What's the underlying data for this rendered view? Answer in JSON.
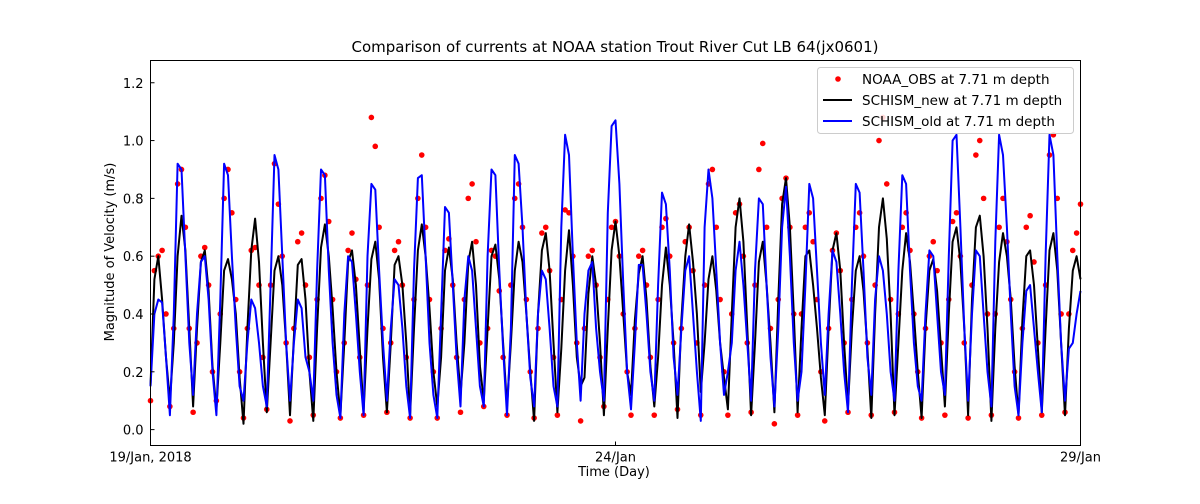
{
  "chart_data": {
    "type": "line",
    "title": "Comparison of currents at NOAA station Trout River Cut LB 64(jx0601)",
    "xlabel": "Time (Day)",
    "ylabel": "Magnitude of Velocity (m/s)",
    "x_units": "hours since 19/Jan 2018 00:00",
    "x_start": 0,
    "x_step": 1,
    "xlim": [
      0,
      240
    ],
    "ylim": [
      -0.055,
      1.277
    ],
    "xticks": [
      {
        "value": 0,
        "label": "19/Jan, 2018"
      },
      {
        "value": 120,
        "label": "24/Jan"
      },
      {
        "value": 240,
        "label": "29/Jan"
      }
    ],
    "yticks": [
      {
        "value": 0.0,
        "label": "0.0"
      },
      {
        "value": 0.2,
        "label": "0.2"
      },
      {
        "value": 0.4,
        "label": "0.4"
      },
      {
        "value": 0.6,
        "label": "0.6"
      },
      {
        "value": 0.8,
        "label": "0.8"
      },
      {
        "value": 1.0,
        "label": "1.0"
      },
      {
        "value": 1.2,
        "label": "1.2"
      }
    ],
    "grid": false,
    "legend_position": "top-right",
    "series": [
      {
        "name": "NOAA_OBS at 7.71 m depth",
        "style": "scatter",
        "color": "#ff0000",
        "values": [
          0.1,
          0.55,
          0.6,
          0.62,
          0.4,
          0.08,
          0.35,
          0.85,
          0.9,
          0.7,
          0.35,
          0.06,
          0.3,
          0.6,
          0.63,
          0.5,
          0.2,
          0.1,
          0.4,
          0.8,
          0.9,
          0.75,
          0.45,
          0.2,
          0.04,
          0.35,
          0.62,
          0.63,
          0.5,
          0.25,
          0.07,
          0.5,
          0.92,
          0.78,
          0.6,
          0.3,
          0.03,
          0.35,
          0.65,
          0.68,
          0.5,
          0.25,
          0.05,
          0.45,
          0.8,
          0.88,
          0.72,
          0.45,
          0.2,
          0.04,
          0.3,
          0.62,
          0.68,
          0.52,
          0.25,
          0.05,
          0.5,
          1.08,
          0.98,
          0.7,
          0.35,
          0.06,
          0.3,
          0.62,
          0.65,
          0.5,
          0.25,
          0.04,
          0.45,
          0.8,
          0.95,
          0.7,
          0.45,
          0.2,
          0.04,
          0.35,
          0.62,
          0.66,
          0.5,
          0.25,
          0.06,
          0.45,
          0.8,
          0.85,
          0.65,
          0.3,
          0.08,
          0.35,
          0.62,
          0.6,
          0.48,
          0.25,
          0.05,
          0.5,
          0.8,
          0.85,
          0.7,
          0.45,
          0.2,
          0.04,
          0.35,
          0.68,
          0.7,
          0.55,
          0.25,
          0.05,
          0.45,
          0.76,
          0.75,
          0.6,
          0.3,
          0.03,
          0.35,
          0.6,
          0.62,
          0.5,
          0.25,
          0.08,
          0.45,
          0.7,
          0.72,
          0.6,
          0.4,
          0.2,
          0.05,
          0.35,
          0.6,
          0.62,
          0.5,
          0.25,
          0.05,
          0.45,
          0.7,
          0.73,
          0.6,
          0.3,
          0.07,
          0.35,
          0.65,
          0.7,
          0.55,
          0.3,
          0.05,
          0.5,
          0.85,
          0.9,
          0.7,
          0.45,
          0.2,
          0.05,
          0.4,
          0.75,
          0.78,
          0.6,
          0.3,
          0.06,
          0.5,
          0.9,
          0.99,
          0.7,
          0.35,
          0.02,
          0.45,
          0.8,
          0.87,
          0.7,
          0.4,
          0.05,
          0.4,
          0.7,
          0.75,
          0.65,
          0.45,
          0.2,
          0.03,
          0.35,
          0.62,
          0.68,
          0.55,
          0.3,
          0.06,
          0.45,
          0.7,
          0.75,
          0.6,
          0.3,
          0.05,
          0.5,
          1.0,
          1.08,
          0.85,
          0.45,
          0.06,
          0.4,
          0.7,
          0.75,
          0.62,
          0.4,
          0.2,
          0.04,
          0.35,
          0.6,
          0.65,
          0.55,
          0.3,
          0.05,
          0.45,
          0.72,
          0.75,
          0.6,
          0.3,
          0.04,
          0.5,
          0.95,
          1.0,
          0.8,
          0.4,
          0.05,
          0.4,
          0.7,
          0.8,
          0.65,
          0.45,
          0.2,
          0.04,
          0.35,
          0.7,
          0.74,
          0.58,
          0.3,
          0.05,
          0.5,
          0.95,
          1.02,
          0.8,
          0.4,
          0.06,
          0.4,
          0.62,
          0.68,
          0.78
        ]
      },
      {
        "name": "SCHISM_new at 7.71 m depth",
        "style": "line",
        "color": "#000000",
        "values": [
          0.15,
          0.52,
          0.6,
          0.45,
          0.25,
          0.1,
          0.3,
          0.6,
          0.74,
          0.62,
          0.35,
          0.08,
          0.35,
          0.58,
          0.62,
          0.48,
          0.22,
          0.07,
          0.3,
          0.55,
          0.59,
          0.52,
          0.4,
          0.18,
          0.02,
          0.35,
          0.62,
          0.73,
          0.58,
          0.3,
          0.06,
          0.3,
          0.55,
          0.6,
          0.5,
          0.3,
          0.05,
          0.32,
          0.57,
          0.59,
          0.45,
          0.2,
          0.03,
          0.35,
          0.63,
          0.71,
          0.6,
          0.42,
          0.2,
          0.05,
          0.3,
          0.58,
          0.62,
          0.5,
          0.28,
          0.06,
          0.35,
          0.59,
          0.65,
          0.52,
          0.25,
          0.06,
          0.3,
          0.57,
          0.6,
          0.5,
          0.3,
          0.05,
          0.35,
          0.62,
          0.71,
          0.6,
          0.42,
          0.2,
          0.08,
          0.25,
          0.55,
          0.63,
          0.52,
          0.3,
          0.12,
          0.3,
          0.58,
          0.65,
          0.5,
          0.22,
          0.1,
          0.35,
          0.6,
          0.64,
          0.52,
          0.3,
          0.08,
          0.3,
          0.55,
          0.65,
          0.58,
          0.4,
          0.2,
          0.03,
          0.4,
          0.62,
          0.68,
          0.55,
          0.3,
          0.06,
          0.28,
          0.55,
          0.69,
          0.5,
          0.25,
          0.15,
          0.18,
          0.47,
          0.6,
          0.5,
          0.3,
          0.05,
          0.35,
          0.62,
          0.72,
          0.6,
          0.4,
          0.2,
          0.12,
          0.38,
          0.54,
          0.6,
          0.45,
          0.22,
          0.08,
          0.25,
          0.5,
          0.63,
          0.5,
          0.3,
          0.04,
          0.38,
          0.6,
          0.71,
          0.58,
          0.4,
          0.13,
          0.3,
          0.52,
          0.6,
          0.48,
          0.3,
          0.18,
          0.07,
          0.4,
          0.7,
          0.8,
          0.65,
          0.35,
          0.05,
          0.3,
          0.58,
          0.65,
          0.5,
          0.3,
          0.06,
          0.45,
          0.78,
          0.87,
          0.7,
          0.4,
          0.06,
          0.35,
          0.6,
          0.62,
          0.5,
          0.35,
          0.18,
          0.05,
          0.35,
          0.62,
          0.68,
          0.55,
          0.3,
          0.08,
          0.35,
          0.55,
          0.6,
          0.48,
          0.28,
          0.04,
          0.4,
          0.7,
          0.8,
          0.66,
          0.4,
          0.05,
          0.3,
          0.55,
          0.68,
          0.58,
          0.4,
          0.2,
          0.04,
          0.35,
          0.55,
          0.59,
          0.48,
          0.28,
          0.08,
          0.4,
          0.65,
          0.7,
          0.58,
          0.35,
          0.05,
          0.45,
          0.7,
          0.74,
          0.6,
          0.35,
          0.03,
          0.35,
          0.58,
          0.68,
          0.6,
          0.45,
          0.22,
          0.05,
          0.38,
          0.6,
          0.62,
          0.5,
          0.28,
          0.06,
          0.35,
          0.62,
          0.68,
          0.55,
          0.3,
          0.05,
          0.35,
          0.55,
          0.6,
          0.52
        ]
      },
      {
        "name": "SCHISM_old at 7.71 m depth",
        "style": "line",
        "color": "#0000ff",
        "values": [
          0.15,
          0.4,
          0.45,
          0.44,
          0.25,
          0.05,
          0.4,
          0.92,
          0.9,
          0.6,
          0.3,
          0.12,
          0.4,
          0.58,
          0.6,
          0.45,
          0.2,
          0.05,
          0.45,
          0.92,
          0.88,
          0.6,
          0.35,
          0.15,
          0.1,
          0.3,
          0.45,
          0.42,
          0.3,
          0.15,
          0.08,
          0.5,
          0.95,
          0.9,
          0.6,
          0.3,
          0.1,
          0.3,
          0.45,
          0.42,
          0.25,
          0.2,
          0.1,
          0.55,
          0.9,
          0.88,
          0.55,
          0.3,
          0.12,
          0.04,
          0.4,
          0.6,
          0.58,
          0.4,
          0.2,
          0.05,
          0.6,
          0.85,
          0.83,
          0.55,
          0.3,
          0.1,
          0.35,
          0.52,
          0.5,
          0.35,
          0.15,
          0.04,
          0.55,
          0.87,
          0.88,
          0.6,
          0.3,
          0.12,
          0.04,
          0.4,
          0.77,
          0.75,
          0.5,
          0.25,
          0.08,
          0.45,
          0.6,
          0.55,
          0.35,
          0.15,
          0.08,
          0.6,
          0.9,
          0.88,
          0.55,
          0.28,
          0.05,
          0.35,
          0.95,
          0.92,
          0.7,
          0.4,
          0.18,
          0.08,
          0.4,
          0.55,
          0.52,
          0.35,
          0.15,
          0.08,
          0.7,
          1.02,
          0.95,
          0.6,
          0.3,
          0.1,
          0.4,
          0.55,
          0.58,
          0.35,
          0.2,
          0.1,
          0.75,
          1.05,
          1.07,
          0.85,
          0.5,
          0.2,
          0.07,
          0.3,
          0.57,
          0.57,
          0.4,
          0.2,
          0.1,
          0.5,
          0.82,
          0.78,
          0.55,
          0.25,
          0.12,
          0.35,
          0.55,
          0.6,
          0.4,
          0.2,
          0.03,
          0.7,
          0.9,
          0.8,
          0.55,
          0.3,
          0.12,
          0.2,
          0.3,
          0.55,
          0.65,
          0.5,
          0.3,
          0.1,
          0.55,
          0.8,
          0.78,
          0.5,
          0.25,
          0.08,
          0.35,
          0.7,
          0.84,
          0.6,
          0.3,
          0.1,
          0.2,
          0.5,
          0.85,
          0.8,
          0.55,
          0.3,
          0.12,
          0.4,
          0.62,
          0.58,
          0.4,
          0.2,
          0.06,
          0.5,
          0.85,
          0.82,
          0.55,
          0.25,
          0.12,
          0.45,
          0.6,
          0.55,
          0.4,
          0.2,
          0.1,
          0.55,
          0.88,
          0.85,
          0.55,
          0.3,
          0.15,
          0.1,
          0.4,
          0.62,
          0.6,
          0.4,
          0.2,
          0.12,
          0.6,
          1.0,
          1.02,
          0.7,
          0.35,
          0.1,
          0.4,
          0.62,
          0.6,
          0.4,
          0.2,
          0.08,
          0.65,
          1.02,
          0.95,
          0.7,
          0.4,
          0.15,
          0.05,
          0.3,
          0.48,
          0.5,
          0.35,
          0.2,
          0.06,
          0.6,
          1.02,
          0.95,
          0.6,
          0.3,
          0.1,
          0.28,
          0.3,
          0.4,
          0.48
        ]
      }
    ]
  }
}
